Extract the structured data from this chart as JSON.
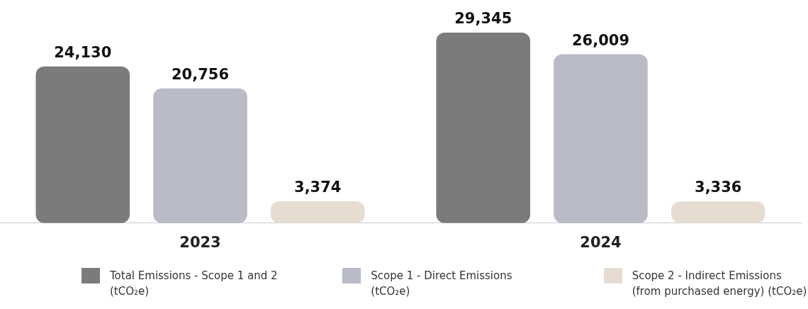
{
  "chart_data": {
    "type": "bar",
    "categories": [
      "2023",
      "2024"
    ],
    "series": [
      {
        "name": "Total Emissions - Scope 1 and 2 (tCO₂e)",
        "color": "#7b7b7b",
        "values": [
          24130,
          29345
        ],
        "value_labels": [
          "24,130",
          "29,345"
        ]
      },
      {
        "name": "Scope 1 - Direct Emissions (tCO₂e)",
        "color": "#b9bcc6",
        "values": [
          20756,
          26009
        ],
        "value_labels": [
          "20,756",
          "26,009"
        ]
      },
      {
        "name": "Scope 2 - Indirect Emissions (from purchased energy) (tCO₂e)",
        "color": "#e6dcd2",
        "values": [
          3374,
          3336
        ],
        "value_labels": [
          "3,374",
          "3,336"
        ]
      }
    ],
    "legend": "bottom",
    "grid": false
  }
}
